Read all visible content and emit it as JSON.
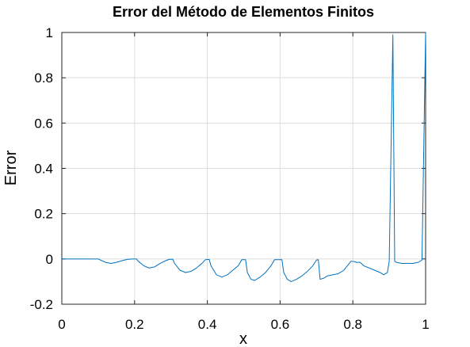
{
  "chart_data": {
    "type": "line",
    "title": "Error del Método de Elementos Finitos",
    "xlabel": "x",
    "ylabel": "Error",
    "xlim": [
      0,
      1
    ],
    "ylim": [
      -0.2,
      1
    ],
    "xticks": [
      0,
      0.2,
      0.4,
      0.6,
      0.8,
      1
    ],
    "xtick_labels": [
      "0",
      "0.2",
      "0.4",
      "0.6",
      "0.8",
      "1"
    ],
    "yticks": [
      -0.2,
      0,
      0.2,
      0.4,
      0.6,
      0.8,
      1
    ],
    "ytick_labels": [
      "-0.2",
      "0",
      "0.2",
      "0.4",
      "0.6",
      "0.8",
      "1"
    ],
    "grid": true,
    "series": [
      {
        "color": "#0072bd",
        "x": [
          0,
          0.1,
          0.105,
          0.12,
          0.135,
          0.15,
          0.165,
          0.18,
          0.195,
          0.205,
          0.21,
          0.225,
          0.24,
          0.255,
          0.27,
          0.285,
          0.295,
          0.305,
          0.31,
          0.325,
          0.34,
          0.355,
          0.37,
          0.385,
          0.395,
          0.405,
          0.41,
          0.425,
          0.44,
          0.455,
          0.47,
          0.485,
          0.495,
          0.505,
          0.51,
          0.52,
          0.53,
          0.545,
          0.56,
          0.575,
          0.585,
          0.6,
          0.605,
          0.61,
          0.62,
          0.63,
          0.645,
          0.66,
          0.675,
          0.69,
          0.7,
          0.705,
          0.71,
          0.72,
          0.73,
          0.745,
          0.76,
          0.775,
          0.785,
          0.795,
          0.805,
          0.81,
          0.82,
          0.83,
          0.845,
          0.86,
          0.875,
          0.885,
          0.895,
          0.9,
          0.91,
          0.915,
          0.92,
          0.935,
          0.95,
          0.965,
          0.98,
          0.99,
          1
        ],
        "y": [
          0,
          0,
          -0.004,
          -0.015,
          -0.02,
          -0.015,
          -0.008,
          -0.002,
          0,
          0,
          -0.01,
          -0.03,
          -0.04,
          -0.035,
          -0.02,
          -0.008,
          -0.002,
          -0.001,
          -0.02,
          -0.05,
          -0.06,
          -0.055,
          -0.04,
          -0.02,
          -0.003,
          -0.002,
          -0.03,
          -0.07,
          -0.08,
          -0.07,
          -0.05,
          -0.03,
          -0.003,
          -0.003,
          -0.06,
          -0.09,
          -0.095,
          -0.08,
          -0.06,
          -0.03,
          -0.003,
          -0.003,
          -0.003,
          -0.06,
          -0.09,
          -0.1,
          -0.09,
          -0.075,
          -0.055,
          -0.03,
          -0.005,
          -0.003,
          -0.09,
          -0.085,
          -0.075,
          -0.07,
          -0.065,
          -0.05,
          -0.03,
          -0.01,
          -0.012,
          -0.015,
          -0.015,
          -0.03,
          -0.04,
          -0.05,
          -0.06,
          -0.07,
          -0.06,
          -0.01,
          0.99,
          -0.01,
          -0.015,
          -0.02,
          -0.02,
          -0.02,
          -0.015,
          -0.005,
          1.0
        ]
      }
    ]
  }
}
